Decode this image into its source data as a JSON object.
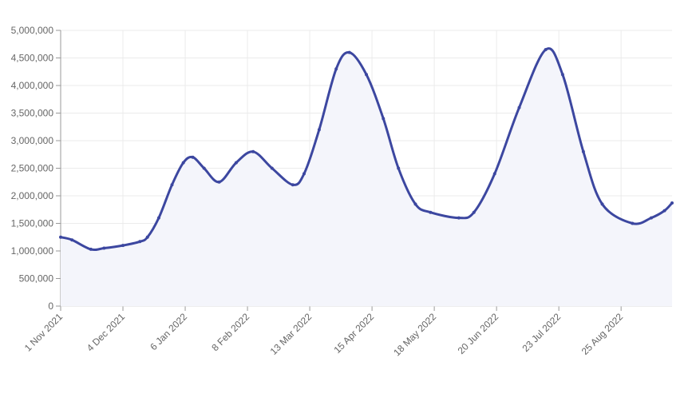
{
  "chart_data": {
    "type": "line",
    "x": [
      "2021-11-01",
      "2021-11-07",
      "2021-11-17",
      "2021-11-24",
      "2021-12-04",
      "2021-12-13",
      "2021-12-17",
      "2021-12-23",
      "2021-12-30",
      "2022-01-05",
      "2022-01-10",
      "2022-01-16",
      "2022-01-24",
      "2022-02-02",
      "2022-02-11",
      "2022-02-21",
      "2022-03-04",
      "2022-03-10",
      "2022-03-18",
      "2022-03-27",
      "2022-04-03",
      "2022-04-12",
      "2022-04-21",
      "2022-04-29",
      "2022-05-08",
      "2022-05-16",
      "2022-05-31",
      "2022-06-08",
      "2022-06-19",
      "2022-07-02",
      "2022-07-16",
      "2022-07-25",
      "2022-08-05",
      "2022-08-15",
      "2022-08-31",
      "2022-09-10",
      "2022-09-17",
      "2022-09-21"
    ],
    "series": [
      {
        "color": "#3c47a0",
        "fill": "#f4f5fb",
        "values": [
          1250000,
          1200000,
          1030000,
          1050000,
          1100000,
          1170000,
          1250000,
          1600000,
          2200000,
          2600000,
          2700000,
          2500000,
          2250000,
          2600000,
          2800000,
          2500000,
          2200000,
          2400000,
          3200000,
          4300000,
          4600000,
          4200000,
          3400000,
          2500000,
          1850000,
          1700000,
          1600000,
          1700000,
          2400000,
          3600000,
          4650000,
          4200000,
          2800000,
          1850000,
          1500000,
          1600000,
          1730000,
          1870000
        ]
      }
    ],
    "xlim": [
      "2021-11-01",
      "2022-09-21"
    ],
    "xticks": [
      {
        "value": "2021-11-01",
        "label": "1 Nov 2021"
      },
      {
        "value": "2021-12-04",
        "label": "4 Dec 2021"
      },
      {
        "value": "2022-01-06",
        "label": "6 Jan 2022"
      },
      {
        "value": "2022-02-08",
        "label": "8 Feb 2022"
      },
      {
        "value": "2022-03-13",
        "label": "13 Mar 2022"
      },
      {
        "value": "2022-04-15",
        "label": "15 Apr 2022"
      },
      {
        "value": "2022-05-18",
        "label": "18 May 2022"
      },
      {
        "value": "2022-06-20",
        "label": "20 Jun 2022"
      },
      {
        "value": "2022-07-23",
        "label": "23 Jul 2022"
      },
      {
        "value": "2022-08-25",
        "label": "25 Aug 2022"
      }
    ],
    "ylim": [
      0,
      5000000
    ],
    "yticks": [
      0,
      {
        "value": 500000,
        "label": "500,000"
      },
      {
        "value": 1000000,
        "label": "1,000,000"
      },
      {
        "value": 1500000,
        "label": "1,500,000"
      },
      {
        "value": 2000000,
        "label": "2,000,000"
      },
      {
        "value": 2500000,
        "label": "2,500,000"
      },
      {
        "value": 3000000,
        "label": "3,000,000"
      },
      {
        "value": 3500000,
        "label": "3,500,000"
      },
      {
        "value": 4000000,
        "label": "4,000,000"
      },
      {
        "value": 4500000,
        "label": "4,500,000"
      },
      {
        "value": 5000000,
        "label": "5,000,000"
      }
    ],
    "grid": true
  }
}
